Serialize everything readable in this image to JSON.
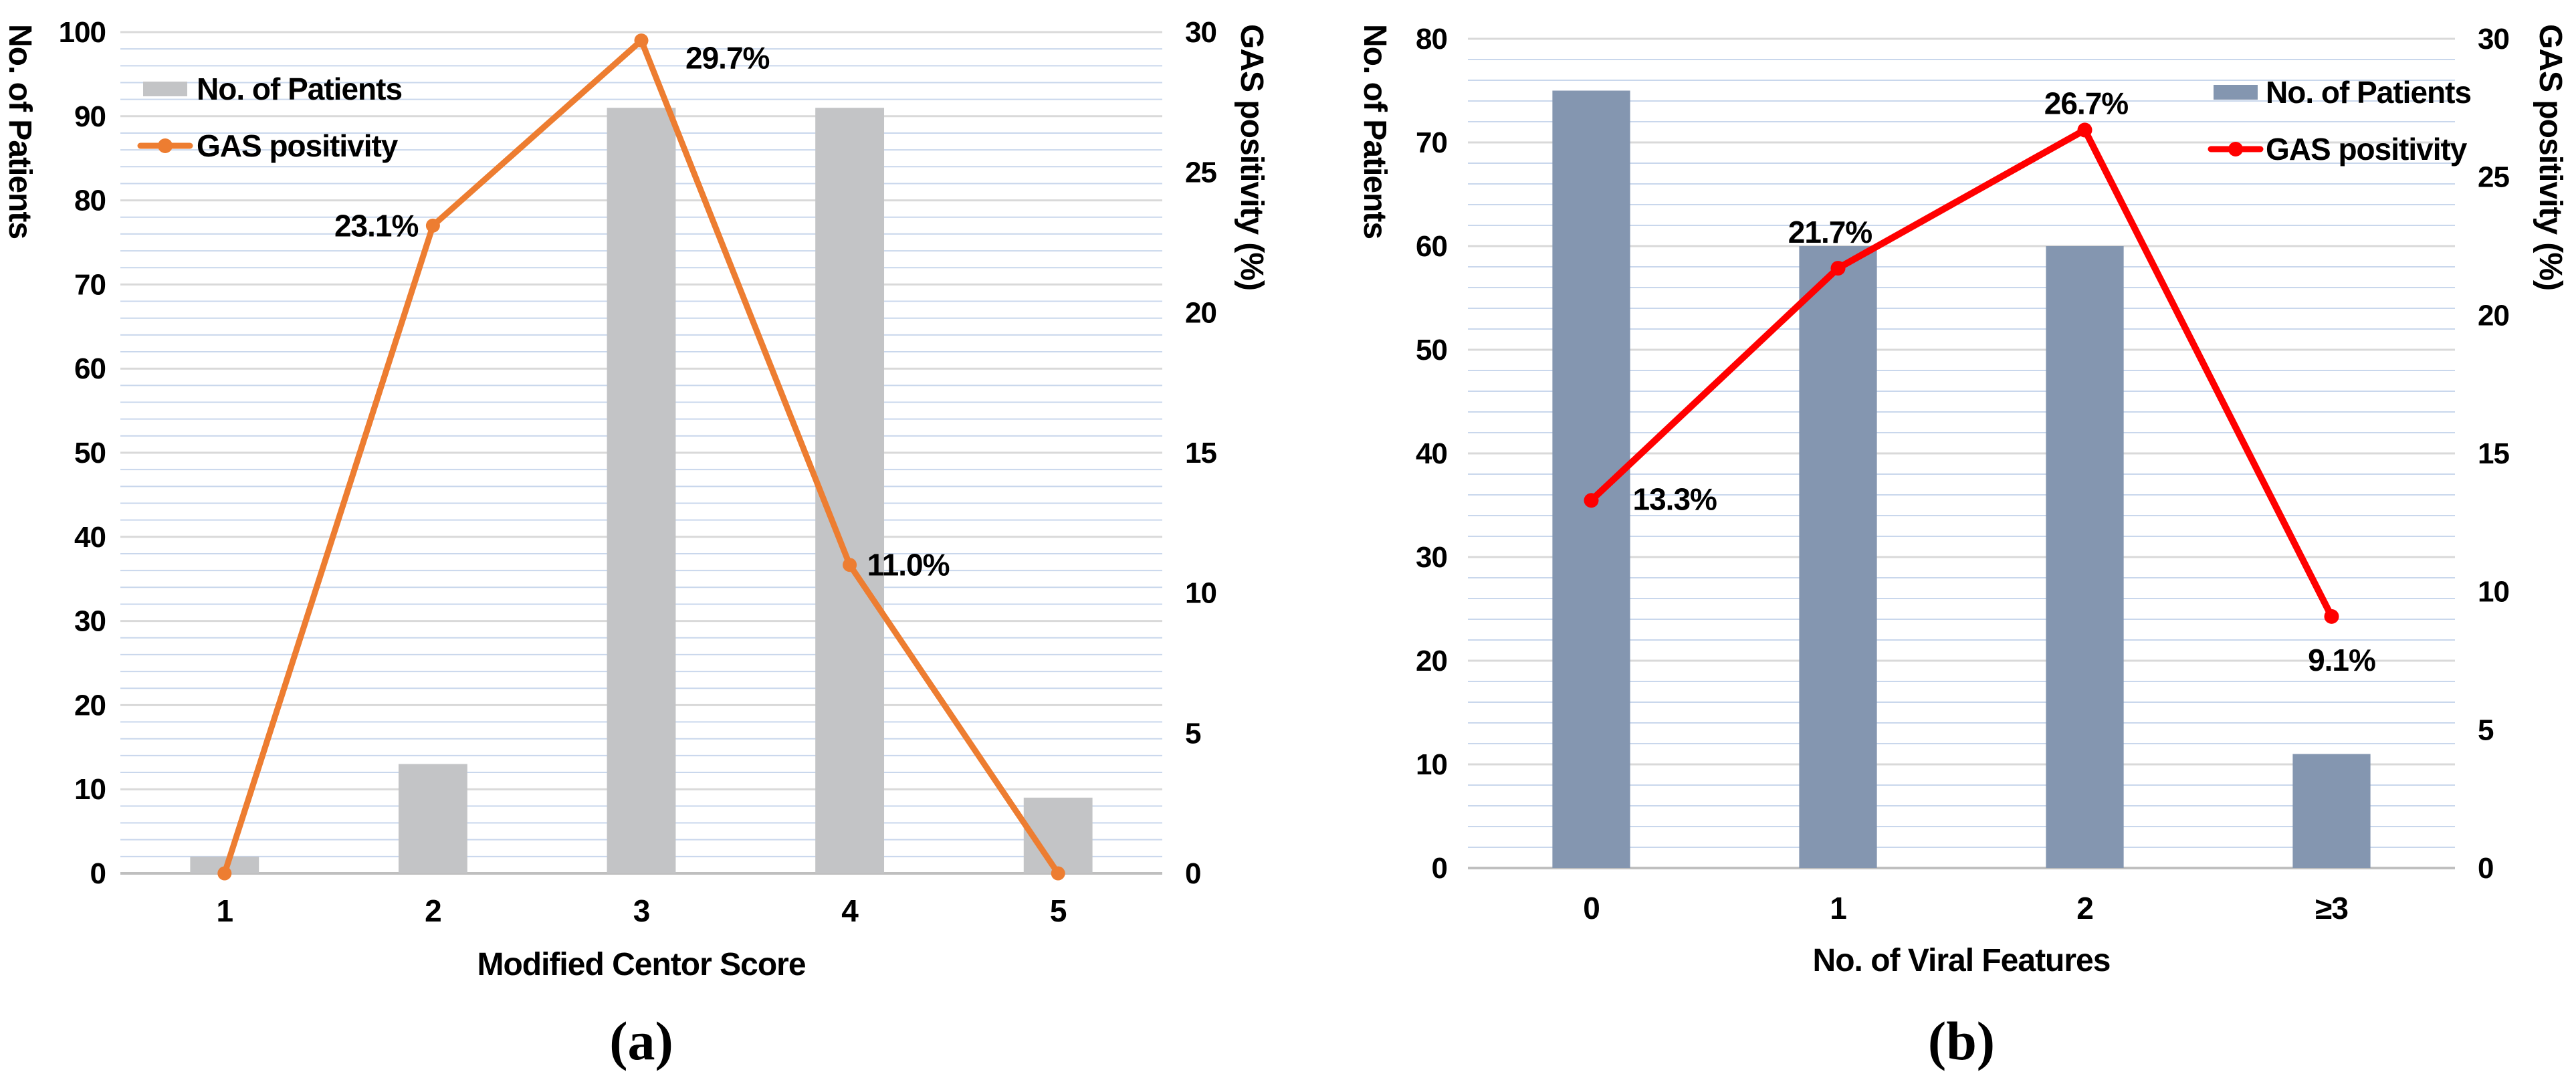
{
  "figure": {
    "background": "#ffffff",
    "caption_a": "(a)",
    "caption_b": "(b)"
  },
  "chart_data": [
    {
      "type": "combo-bar-line",
      "caption": "(a)",
      "xlabel": "Modified Centor Score",
      "ylabel_left": "No. of Patients",
      "ylabel_right": "GAS positivity (%)",
      "categories": [
        "1",
        "2",
        "3",
        "4",
        "5"
      ],
      "ylim_left": [
        0,
        100
      ],
      "yticks_left": [
        0,
        10,
        20,
        30,
        40,
        50,
        60,
        70,
        80,
        90,
        100
      ],
      "ylim_right": [
        0,
        30
      ],
      "yticks_right": [
        0,
        5,
        10,
        15,
        20,
        25,
        30
      ],
      "minor_grid_step_left": 2,
      "grid": true,
      "legend_position": "top-left",
      "legend_labels": [
        "No. of Patients",
        "GAS positivity"
      ],
      "colors": {
        "bar": "#C3C4C6",
        "line": "#ED7D31",
        "minor_grid": "#C9D7EC",
        "major_grid": "#D9D9D9",
        "baseline": "#BFBFBF"
      },
      "series": [
        {
          "name": "No. of Patients",
          "type": "bar",
          "axis": "left",
          "values": [
            2,
            13,
            91,
            91,
            9
          ]
        },
        {
          "name": "GAS positivity",
          "type": "line",
          "axis": "right",
          "values": [
            0,
            23.1,
            29.7,
            11.0,
            0
          ],
          "point_labels": [
            "",
            "23.1%",
            "29.7%",
            "11.0%",
            ""
          ]
        }
      ]
    },
    {
      "type": "combo-bar-line",
      "caption": "(b)",
      "xlabel": "No. of Viral Features",
      "ylabel_left": "No. of Patients",
      "ylabel_right": "GAS positivity (%)",
      "categories": [
        "0",
        "1",
        "2",
        "≥3"
      ],
      "ylim_left": [
        0,
        80
      ],
      "yticks_left": [
        0,
        10,
        20,
        30,
        40,
        50,
        60,
        70,
        80
      ],
      "ylim_right": [
        0,
        30
      ],
      "yticks_right": [
        0,
        5,
        10,
        15,
        20,
        25,
        30
      ],
      "minor_grid_step_left": 2,
      "grid": true,
      "legend_position": "top-right",
      "legend_labels": [
        "No. of Patients",
        "GAS positivity"
      ],
      "colors": {
        "bar": "#8496B0",
        "line": "#FF0000",
        "minor_grid": "#C9D7EC",
        "major_grid": "#D9D9D9",
        "baseline": "#BFBFBF"
      },
      "series": [
        {
          "name": "No. of Patients",
          "type": "bar",
          "axis": "left",
          "values": [
            75,
            60,
            60,
            11
          ]
        },
        {
          "name": "GAS positivity",
          "type": "line",
          "axis": "right",
          "values": [
            13.3,
            21.7,
            26.7,
            9.1
          ],
          "point_labels": [
            "13.3%",
            "21.7%",
            "26.7%",
            "9.1%"
          ]
        }
      ]
    }
  ]
}
